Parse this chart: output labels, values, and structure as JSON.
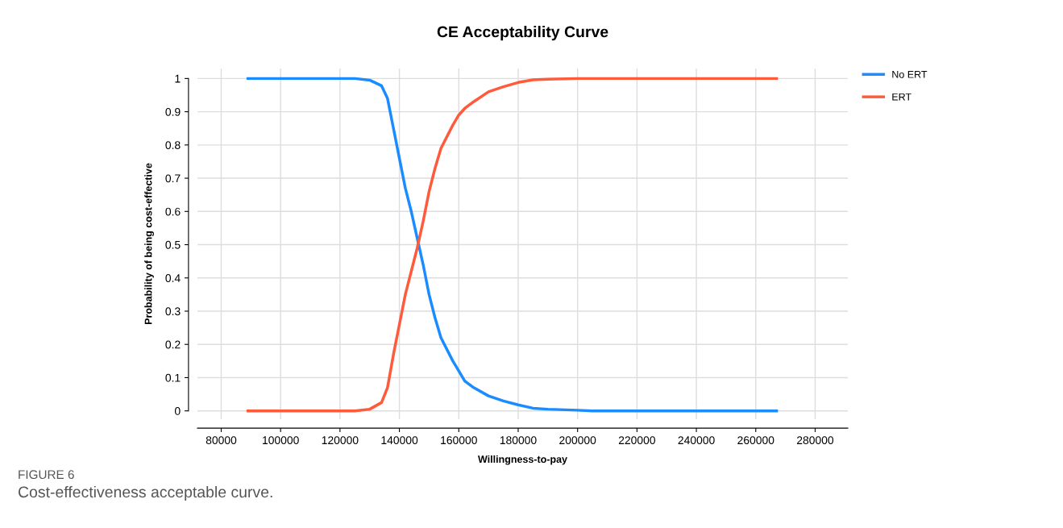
{
  "chart_data": {
    "type": "line",
    "title": "CE Acceptability Curve",
    "xlabel": "Willingness-to-pay",
    "ylabel": "Probability of being cost-effective",
    "annotations": [
      "FIGURE 6",
      "Cost-effectiveness acceptable curve."
    ],
    "x": [
      89000,
      125000,
      130000,
      134000,
      136000,
      138000,
      140000,
      142000,
      144000,
      146000,
      148000,
      150000,
      152000,
      154000,
      158000,
      160000,
      162000,
      165000,
      170000,
      175000,
      180000,
      185000,
      190000,
      200000,
      205000,
      267000
    ],
    "series": [
      {
        "name": "No ERT",
        "color": "#1a8cff",
        "values": [
          1,
          1,
          0.995,
          0.978,
          0.94,
          0.85,
          0.76,
          0.67,
          0.6,
          0.52,
          0.44,
          0.35,
          0.28,
          0.22,
          0.15,
          0.12,
          0.09,
          0.07,
          0.045,
          0.03,
          0.018,
          0.008,
          0.005,
          0.002,
          0,
          0
        ]
      },
      {
        "name": "ERT",
        "color": "#ff5a3c",
        "values": [
          0,
          0,
          0.005,
          0.025,
          0.07,
          0.17,
          0.26,
          0.35,
          0.42,
          0.49,
          0.57,
          0.66,
          0.73,
          0.79,
          0.86,
          0.89,
          0.91,
          0.93,
          0.96,
          0.975,
          0.988,
          0.996,
          0.998,
          1,
          1,
          1
        ]
      }
    ],
    "xlim": [
      72000,
      291000
    ],
    "ylim": [
      -0.025,
      1.03
    ],
    "xticks": [
      80000,
      100000,
      120000,
      140000,
      160000,
      180000,
      200000,
      220000,
      240000,
      260000,
      280000
    ],
    "yticks": [
      0,
      0.1,
      0.2,
      0.3,
      0.4,
      0.5,
      0.6,
      0.7,
      0.8,
      0.9,
      1
    ],
    "grid": true,
    "legend": "top right",
    "marker": "none",
    "line_style": "solid"
  }
}
